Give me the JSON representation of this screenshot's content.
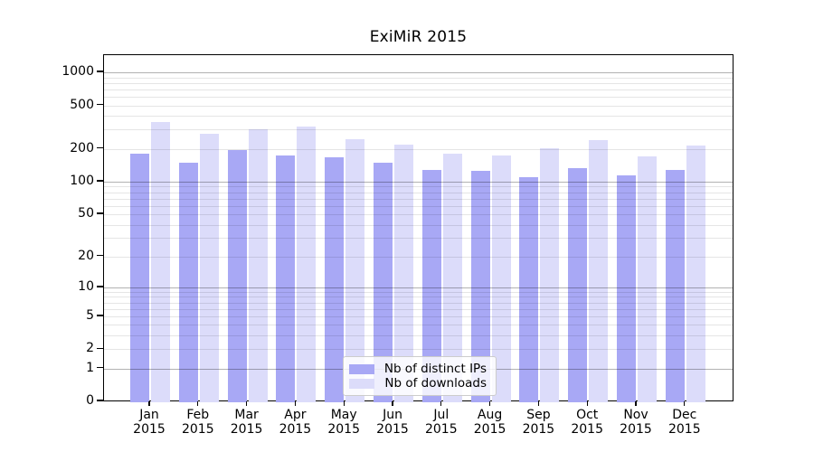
{
  "chart_data": {
    "type": "bar",
    "title": "ExiMiR 2015",
    "categories": [
      "Jan",
      "Feb",
      "Mar",
      "Apr",
      "May",
      "Jun",
      "Jul",
      "Aug",
      "Sep",
      "Oct",
      "Nov",
      "Dec"
    ],
    "year_label": "2015",
    "series": [
      {
        "name": "Nb of distinct IPs",
        "color": "#a8a8f5",
        "values": [
          180,
          150,
          194,
          174,
          166,
          150,
          128,
          126,
          110,
          133,
          114,
          128
        ]
      },
      {
        "name": "Nb of downloads",
        "color": "#dcdcfa",
        "values": [
          352,
          275,
          302,
          320,
          245,
          220,
          181,
          174,
          203,
          241,
          171,
          214
        ]
      }
    ],
    "yscale": "log1p",
    "y_ticks": [
      1000,
      500,
      200,
      100,
      50,
      20,
      10,
      5,
      2,
      1,
      0
    ],
    "ylim": [
      0,
      1435
    ],
    "grid": true,
    "legend_position": "lower center"
  }
}
